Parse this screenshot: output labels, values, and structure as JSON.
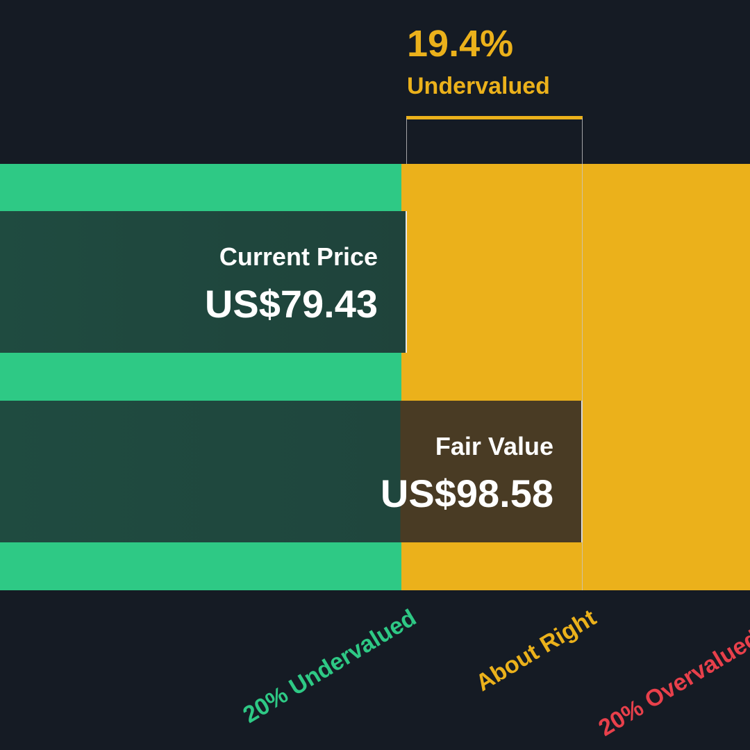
{
  "chart_data": {
    "type": "bar",
    "header": {
      "percentage": "19.4%",
      "status": "Undervalued"
    },
    "categories": [
      "Current Price",
      "Fair Value"
    ],
    "values": [
      79.43,
      98.58
    ],
    "value_labels": [
      "US$79.43",
      "US$98.58"
    ],
    "zones": [
      {
        "name": "20% Undervalued",
        "color": "#2ec985"
      },
      {
        "name": "About Right",
        "color": "#ebb11b"
      },
      {
        "name": "20% Overvalued",
        "color": "#e8404b"
      }
    ],
    "background": "#151b24"
  }
}
